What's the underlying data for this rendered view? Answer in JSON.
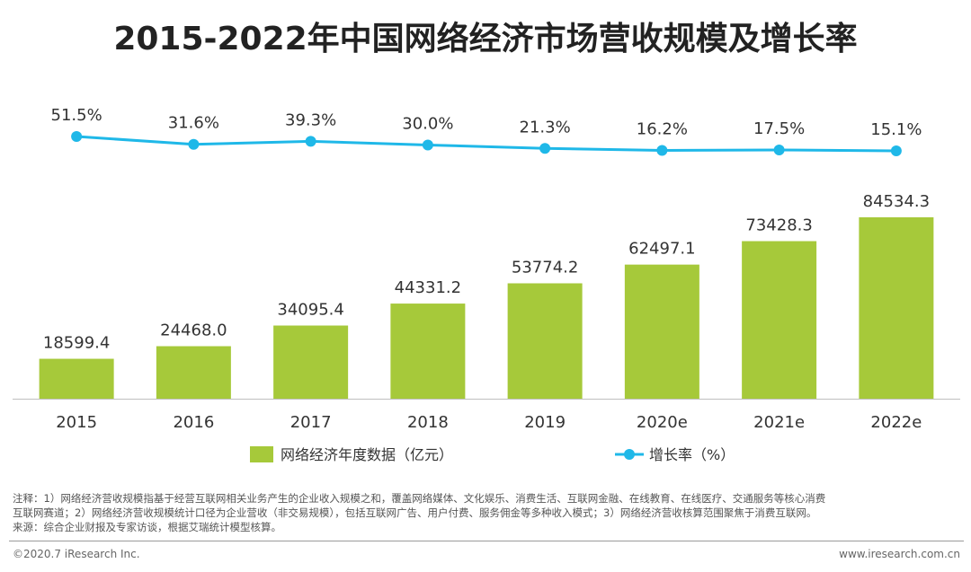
{
  "title": "2015-2022年中国网络经济市场营收规模及增长率",
  "chart_data": {
    "type": "bar+line",
    "categories": [
      "2015",
      "2016",
      "2017",
      "2018",
      "2019",
      "2020e",
      "2021e",
      "2022e"
    ],
    "bar_series": {
      "name": "网络经济年度数据（亿元）",
      "values": [
        18599.4,
        24468.0,
        34095.4,
        44331.2,
        53774.2,
        62497.1,
        73428.3,
        84534.3
      ],
      "labels": [
        "18599.4",
        "24468.0",
        "34095.4",
        "44331.2",
        "53774.2",
        "62497.1",
        "73428.3",
        "84534.3"
      ],
      "color": "#a6c93a"
    },
    "line_series": {
      "name": "增长率（%）",
      "values": [
        51.5,
        31.6,
        39.3,
        30.0,
        21.3,
        16.2,
        17.5,
        15.1
      ],
      "labels": [
        "51.5%",
        "31.6%",
        "39.3%",
        "30.0%",
        "21.3%",
        "16.2%",
        "17.5%",
        "15.1%"
      ],
      "color": "#1fb8e8"
    },
    "legend": {
      "placement": "bottom"
    },
    "grid": false
  },
  "notes": {
    "line1": "注释：1）网络经济营收规模指基于经营互联网相关业务产生的企业收入规模之和，覆盖网络媒体、文化娱乐、消费生活、互联网金融、在线教育、在线医疗、交通服务等核心消费",
    "line2": "互联网赛道；2）网络经济营收规模统计口径为企业营收（非交易规模），包括互联网广告、用户付费、服务佣金等多种收入模式；3）网络经济营收核算范围聚焦于消费互联网。",
    "line3": "来源：综合企业财报及专家访谈，根据艾瑞统计模型核算。"
  },
  "footer": {
    "copyright": "©2020.7 iResearch Inc.",
    "website": "www.iresearch.com.cn"
  }
}
